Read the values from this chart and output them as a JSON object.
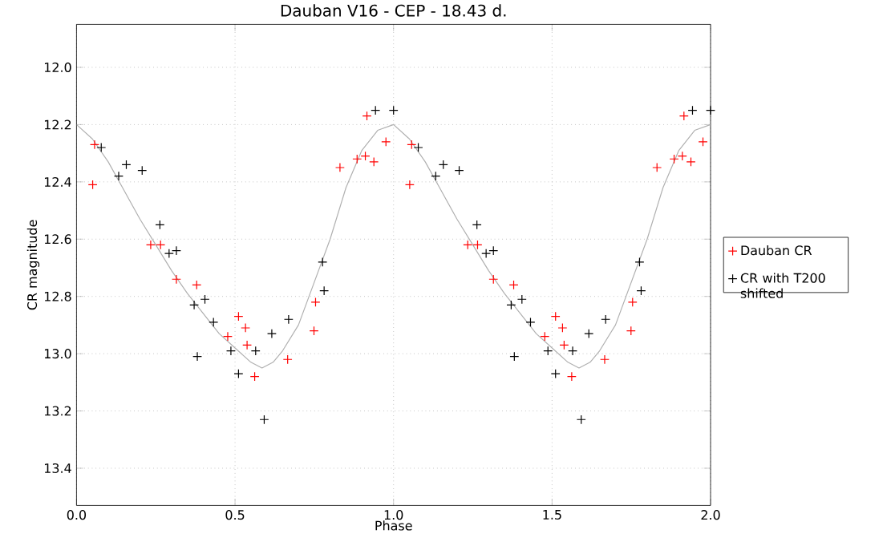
{
  "chart_data": {
    "type": "scatter",
    "title": "Dauban V16 - CEP - 18.43 d.",
    "xlabel": "Phase",
    "ylabel": "CR magnitude",
    "xlim": [
      0,
      2
    ],
    "ylim": [
      13.53,
      11.85
    ],
    "xticks": [
      {
        "value": 0,
        "label": "0.0"
      },
      0.5,
      {
        "value": 1,
        "label": "1.0"
      },
      1.5,
      {
        "value": 2,
        "label": "2.0"
      }
    ],
    "yticks": [
      {
        "value": 12,
        "label": "12.0"
      },
      12.2,
      12.4,
      12.6,
      12.8,
      {
        "value": 13,
        "label": "13.0"
      },
      13.2,
      13.4
    ],
    "grid": true,
    "legend": "right",
    "marker": "cross",
    "series": [
      {
        "name": "Dauban CR",
        "color": "#ff0000",
        "x": [
          0.051,
          0.057,
          0.234,
          0.265,
          0.315,
          0.379,
          0.477,
          0.511,
          0.533,
          0.538,
          0.562,
          0.666,
          0.749,
          0.754,
          0.831,
          0.885,
          0.911,
          0.916,
          0.938,
          0.976,
          1.051,
          1.057,
          1.234,
          1.265,
          1.315,
          1.379,
          1.477,
          1.511,
          1.533,
          1.538,
          1.562,
          1.666,
          1.749,
          1.754,
          1.831,
          1.885,
          1.911,
          1.916,
          1.938,
          1.976
        ],
        "values": [
          12.41,
          12.27,
          12.62,
          12.62,
          12.74,
          12.76,
          12.94,
          12.87,
          12.91,
          12.97,
          13.08,
          13.02,
          12.92,
          12.82,
          12.35,
          12.32,
          12.31,
          12.17,
          12.33,
          12.26,
          12.41,
          12.27,
          12.62,
          12.62,
          12.74,
          12.76,
          12.94,
          12.87,
          12.91,
          12.97,
          13.08,
          13.02,
          12.92,
          12.82,
          12.35,
          12.32,
          12.31,
          12.17,
          12.33,
          12.26
        ]
      },
      {
        "name": "CR with T200 shifted",
        "color": "#000000",
        "x": [
          0.078,
          0.133,
          0.157,
          0.207,
          0.263,
          0.292,
          0.315,
          0.371,
          0.405,
          0.381,
          0.432,
          0.487,
          0.511,
          0.565,
          0.592,
          0.616,
          0.669,
          0.776,
          0.781,
          0.943,
          1.0,
          1.078,
          1.133,
          1.157,
          1.207,
          1.263,
          1.292,
          1.315,
          1.371,
          1.405,
          1.381,
          1.432,
          1.487,
          1.511,
          1.565,
          1.592,
          1.616,
          1.669,
          1.776,
          1.781,
          1.943,
          2.0
        ],
        "values": [
          12.28,
          12.38,
          12.34,
          12.36,
          12.55,
          12.65,
          12.64,
          12.83,
          12.81,
          13.01,
          12.89,
          12.99,
          13.07,
          12.99,
          13.23,
          12.93,
          12.88,
          12.68,
          12.78,
          12.15,
          12.15,
          12.28,
          12.38,
          12.34,
          12.36,
          12.55,
          12.65,
          12.64,
          12.83,
          12.81,
          13.01,
          12.89,
          12.99,
          13.07,
          12.99,
          13.23,
          12.93,
          12.88,
          12.68,
          12.78,
          12.15,
          12.15
        ]
      },
      {
        "type": "line",
        "marker": "none",
        "color": "#b0b0b0",
        "x": [
          0,
          0.05,
          0.1,
          0.15,
          0.2,
          0.25,
          0.3,
          0.35,
          0.4,
          0.45,
          0.5,
          0.55,
          0.585,
          0.62,
          0.65,
          0.7,
          0.75,
          0.8,
          0.85,
          0.9,
          0.95,
          1.0,
          1.05,
          1.1,
          1.15,
          1.2,
          1.25,
          1.3,
          1.35,
          1.4,
          1.45,
          1.5,
          1.55,
          1.585,
          1.62,
          1.65,
          1.7,
          1.75,
          1.8,
          1.85,
          1.9,
          1.95,
          2.0
        ],
        "values": [
          12.2,
          12.25,
          12.33,
          12.43,
          12.53,
          12.62,
          12.71,
          12.79,
          12.86,
          12.93,
          12.98,
          13.03,
          13.05,
          13.03,
          12.99,
          12.9,
          12.75,
          12.6,
          12.42,
          12.29,
          12.22,
          12.2,
          12.25,
          12.33,
          12.43,
          12.53,
          12.62,
          12.71,
          12.79,
          12.86,
          12.93,
          12.98,
          13.03,
          13.05,
          13.03,
          12.99,
          12.9,
          12.75,
          12.6,
          12.42,
          12.29,
          12.22,
          12.2
        ]
      }
    ]
  }
}
